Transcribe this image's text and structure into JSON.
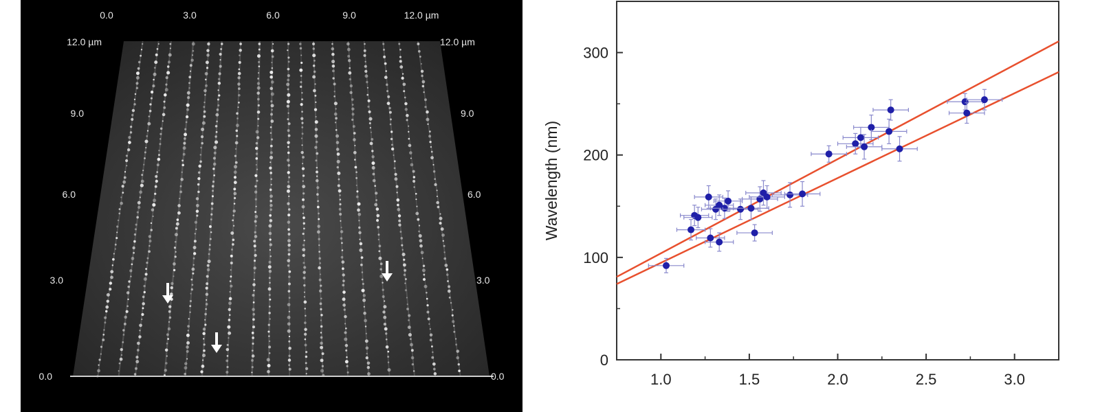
{
  "afm_image": {
    "top_ticks": [
      "0.0",
      "3.0",
      "6.0",
      "9.0",
      "12.0 µm"
    ],
    "corner_left_label": "12.0 µm",
    "corner_right_label": "12.0 µm",
    "left_ticks": [
      "9.0",
      "6.0",
      "3.0",
      "0.0"
    ],
    "right_ticks": [
      "9.0",
      "6.0",
      "3.0",
      "0.0"
    ]
  },
  "chart_data": {
    "type": "scatter",
    "ylabel": "Wavelength (nm)",
    "xlabel": "",
    "xlim": [
      0.75,
      3.25
    ],
    "ylim": [
      0,
      350
    ],
    "x_ticks": [
      1.0,
      1.5,
      2.0,
      2.5,
      3.0
    ],
    "x_tick_labels": [
      "1.0",
      "1.5",
      "2.0",
      "2.5",
      "3.0"
    ],
    "y_ticks": [
      0,
      100,
      200,
      300
    ],
    "y_tick_labels": [
      "0",
      "100",
      "200",
      "300"
    ],
    "grid": false,
    "marker_color": "#1f1fa8",
    "errorbar_color": "#8888cc",
    "fit_line_color": "#e8502e",
    "points": [
      {
        "x": 1.03,
        "y": 92,
        "xerr": 0.1,
        "yerr": 7
      },
      {
        "x": 1.17,
        "y": 127,
        "xerr": 0.08,
        "yerr": 10
      },
      {
        "x": 1.19,
        "y": 141,
        "xerr": 0.08,
        "yerr": 10
      },
      {
        "x": 1.21,
        "y": 139,
        "xerr": 0.08,
        "yerr": 10
      },
      {
        "x": 1.27,
        "y": 159,
        "xerr": 0.08,
        "yerr": 11
      },
      {
        "x": 1.28,
        "y": 119,
        "xerr": 0.08,
        "yerr": 9
      },
      {
        "x": 1.31,
        "y": 147,
        "xerr": 0.08,
        "yerr": 10
      },
      {
        "x": 1.33,
        "y": 151,
        "xerr": 0.08,
        "yerr": 10
      },
      {
        "x": 1.33,
        "y": 115,
        "xerr": 0.08,
        "yerr": 9
      },
      {
        "x": 1.36,
        "y": 148,
        "xerr": 0.08,
        "yerr": 10
      },
      {
        "x": 1.38,
        "y": 155,
        "xerr": 0.08,
        "yerr": 10
      },
      {
        "x": 1.45,
        "y": 147,
        "xerr": 0.1,
        "yerr": 10
      },
      {
        "x": 1.51,
        "y": 148,
        "xerr": 0.1,
        "yerr": 11
      },
      {
        "x": 1.53,
        "y": 124,
        "xerr": 0.1,
        "yerr": 8
      },
      {
        "x": 1.56,
        "y": 157,
        "xerr": 0.1,
        "yerr": 12
      },
      {
        "x": 1.58,
        "y": 163,
        "xerr": 0.1,
        "yerr": 12
      },
      {
        "x": 1.6,
        "y": 159,
        "xerr": 0.1,
        "yerr": 11
      },
      {
        "x": 1.73,
        "y": 161,
        "xerr": 0.1,
        "yerr": 12
      },
      {
        "x": 1.8,
        "y": 162,
        "xerr": 0.1,
        "yerr": 12
      },
      {
        "x": 1.95,
        "y": 201,
        "xerr": 0.1,
        "yerr": 8
      },
      {
        "x": 2.1,
        "y": 211,
        "xerr": 0.1,
        "yerr": 10
      },
      {
        "x": 2.13,
        "y": 217,
        "xerr": 0.1,
        "yerr": 10
      },
      {
        "x": 2.15,
        "y": 208,
        "xerr": 0.1,
        "yerr": 12
      },
      {
        "x": 2.19,
        "y": 227,
        "xerr": 0.1,
        "yerr": 12
      },
      {
        "x": 2.29,
        "y": 223,
        "xerr": 0.1,
        "yerr": 12
      },
      {
        "x": 2.3,
        "y": 244,
        "xerr": 0.1,
        "yerr": 10
      },
      {
        "x": 2.35,
        "y": 206,
        "xerr": 0.1,
        "yerr": 12
      },
      {
        "x": 2.72,
        "y": 252,
        "xerr": 0.1,
        "yerr": 8
      },
      {
        "x": 2.73,
        "y": 241,
        "xerr": 0.1,
        "yerr": 10
      },
      {
        "x": 2.83,
        "y": 254,
        "xerr": 0.1,
        "yerr": 10
      }
    ],
    "fit_lines": [
      {
        "x": [
          0.75,
          3.25
        ],
        "y": [
          81,
          311
        ]
      },
      {
        "x": [
          0.75,
          3.25
        ],
        "y": [
          74,
          281
        ]
      }
    ]
  }
}
